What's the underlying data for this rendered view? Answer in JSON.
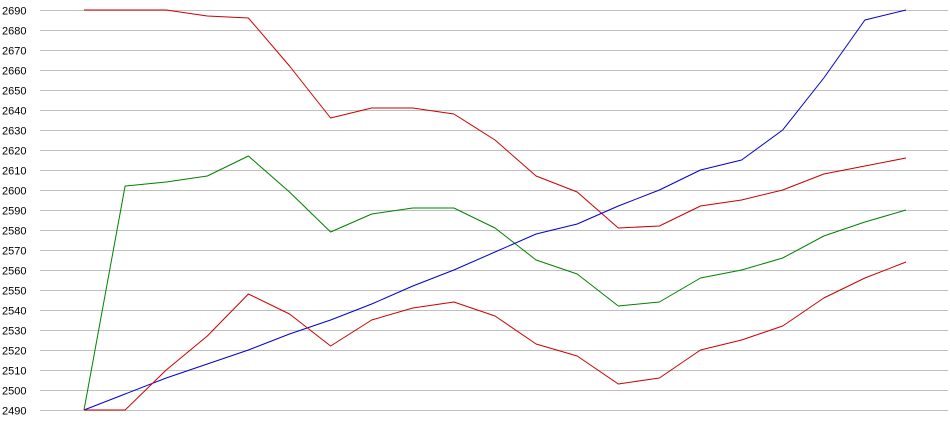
{
  "chart_data": {
    "type": "line",
    "title": "",
    "xlabel": "",
    "ylabel": "",
    "ylim": [
      2490,
      2690
    ],
    "yticks": [
      2490,
      2500,
      2510,
      2520,
      2530,
      2540,
      2550,
      2560,
      2570,
      2580,
      2590,
      2600,
      2610,
      2620,
      2630,
      2640,
      2650,
      2660,
      2670,
      2680,
      2690
    ],
    "grid": true,
    "legend": "none",
    "x": [
      1,
      2,
      3,
      4,
      5,
      6,
      7,
      8,
      9,
      10,
      11,
      12,
      13,
      14,
      15,
      16,
      17,
      18,
      19,
      20,
      21
    ],
    "series": [
      {
        "color": "#cc0000",
        "values": [
          2690,
          2690,
          2690,
          2687,
          2686,
          2662,
          2636,
          2641,
          2641,
          2638,
          2625,
          2607,
          2599,
          2581,
          2582,
          2592,
          2595,
          2600,
          2608,
          2612,
          2616
        ]
      },
      {
        "color": "#008000",
        "values": [
          2490,
          2602,
          2604,
          2607,
          2617,
          2599,
          2579,
          2588,
          2591,
          2591,
          2581,
          2565,
          2558,
          2542,
          2544,
          2556,
          2560,
          2566,
          2577,
          2584,
          2590
        ]
      },
      {
        "color": "#0000cc",
        "values": [
          2490,
          2498,
          2506,
          2513,
          2520,
          2528,
          2535,
          2543,
          2552,
          2560,
          2569,
          2578,
          2583,
          2592,
          2600,
          2610,
          2615,
          2630,
          2656,
          2685,
          2690
        ]
      },
      {
        "color": "#cc0000",
        "values": [
          2490,
          2490,
          2510,
          2527,
          2548,
          2538,
          2522,
          2535,
          2541,
          2544,
          2537,
          2523,
          2517,
          2503,
          2506,
          2520,
          2525,
          2532,
          2546,
          2556,
          2564
        ]
      }
    ]
  }
}
